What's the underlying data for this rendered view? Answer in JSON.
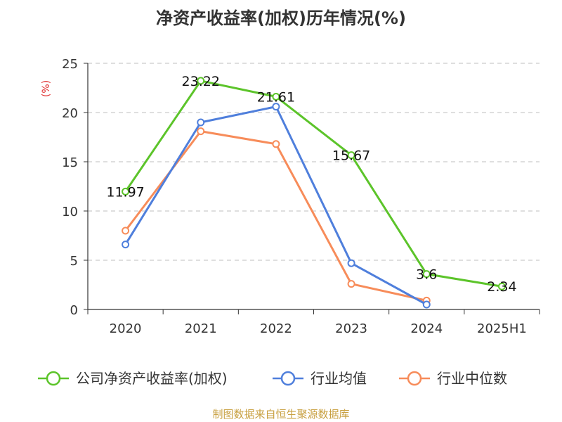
{
  "chart_data": {
    "type": "line",
    "title": "净资产收益率(加权)历年情况(%)",
    "ylabel": "(%)",
    "categories": [
      "2020",
      "2021",
      "2022",
      "2023",
      "2024",
      "2025H1"
    ],
    "ylim": [
      0,
      25
    ],
    "yticks": [
      "0",
      "5",
      "10",
      "15",
      "20",
      "25"
    ],
    "grid": true,
    "legend_position": "bottom",
    "series": [
      {
        "name": "公司净资产收益率(加权)",
        "color": "#5cc42a",
        "values": [
          11.97,
          23.22,
          21.61,
          15.67,
          3.6,
          2.34
        ],
        "labels": [
          "11.97",
          "23.22",
          "21.61",
          "15.67",
          "3.6",
          "2.34"
        ]
      },
      {
        "name": "行业均值",
        "color": "#4f7fdc",
        "values": [
          6.6,
          19.0,
          20.6,
          4.7,
          0.5,
          null
        ]
      },
      {
        "name": "行业中位数",
        "color": "#f78c5a",
        "values": [
          8.0,
          18.1,
          16.8,
          2.6,
          0.9,
          null
        ]
      }
    ],
    "source": "制图数据来自恒生聚源数据库"
  }
}
